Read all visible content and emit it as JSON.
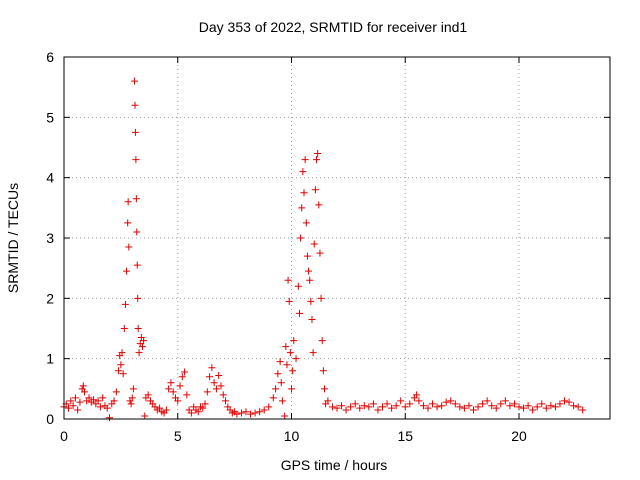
{
  "chart_data": {
    "type": "scatter",
    "title": "Day 353 of 2022, SRMTID for receiver ind1",
    "xlabel": "GPS time / hours",
    "ylabel": "SRMTID / TECUs",
    "xlim": [
      0,
      24
    ],
    "ylim": [
      0,
      6
    ],
    "xticks": [
      0,
      5,
      10,
      15,
      20
    ],
    "yticks": [
      0,
      1,
      2,
      3,
      4,
      5,
      6
    ],
    "grid": true,
    "marker": "+",
    "series": [
      {
        "name": "SRMTID",
        "color": "#e00000",
        "points": [
          [
            0.0,
            0.2
          ],
          [
            0.1,
            0.25
          ],
          [
            0.2,
            0.18
          ],
          [
            0.3,
            0.3
          ],
          [
            0.4,
            0.22
          ],
          [
            0.5,
            0.35
          ],
          [
            0.6,
            0.15
          ],
          [
            0.7,
            0.28
          ],
          [
            0.8,
            0.5
          ],
          [
            0.85,
            0.55
          ],
          [
            0.9,
            0.45
          ],
          [
            1.0,
            0.3
          ],
          [
            1.1,
            0.35
          ],
          [
            1.2,
            0.28
          ],
          [
            1.3,
            0.32
          ],
          [
            1.4,
            0.25
          ],
          [
            1.5,
            0.3
          ],
          [
            1.6,
            0.2
          ],
          [
            1.7,
            0.35
          ],
          [
            1.8,
            0.22
          ],
          [
            1.9,
            0.18
          ],
          [
            2.0,
            0.02
          ],
          [
            2.1,
            0.25
          ],
          [
            2.2,
            0.3
          ],
          [
            2.3,
            0.45
          ],
          [
            2.4,
            0.8
          ],
          [
            2.45,
            1.05
          ],
          [
            2.5,
            0.9
          ],
          [
            2.55,
            1.1
          ],
          [
            2.6,
            0.75
          ],
          [
            2.65,
            1.5
          ],
          [
            2.7,
            1.9
          ],
          [
            2.75,
            2.45
          ],
          [
            2.8,
            3.25
          ],
          [
            2.82,
            3.6
          ],
          [
            2.85,
            2.85
          ],
          [
            2.9,
            0.3
          ],
          [
            2.95,
            0.25
          ],
          [
            3.0,
            0.35
          ],
          [
            3.05,
            0.5
          ],
          [
            3.1,
            5.6
          ],
          [
            3.12,
            5.2
          ],
          [
            3.14,
            4.75
          ],
          [
            3.16,
            4.3
          ],
          [
            3.18,
            3.65
          ],
          [
            3.2,
            3.1
          ],
          [
            3.22,
            2.55
          ],
          [
            3.24,
            2.0
          ],
          [
            3.26,
            1.5
          ],
          [
            3.3,
            1.1
          ],
          [
            3.35,
            1.25
          ],
          [
            3.4,
            1.35
          ],
          [
            3.45,
            1.2
          ],
          [
            3.5,
            1.3
          ],
          [
            3.55,
            0.05
          ],
          [
            3.6,
            0.35
          ],
          [
            3.7,
            0.4
          ],
          [
            3.8,
            0.3
          ],
          [
            3.9,
            0.25
          ],
          [
            4.0,
            0.2
          ],
          [
            4.1,
            0.15
          ],
          [
            4.2,
            0.18
          ],
          [
            4.3,
            0.12
          ],
          [
            4.4,
            0.1
          ],
          [
            4.5,
            0.15
          ],
          [
            4.6,
            0.5
          ],
          [
            4.7,
            0.6
          ],
          [
            4.8,
            0.45
          ],
          [
            4.9,
            0.35
          ],
          [
            5.0,
            0.3
          ],
          [
            5.1,
            0.55
          ],
          [
            5.2,
            0.7
          ],
          [
            5.3,
            0.78
          ],
          [
            5.4,
            0.4
          ],
          [
            5.5,
            0.15
          ],
          [
            5.6,
            0.1
          ],
          [
            5.7,
            0.2
          ],
          [
            5.8,
            0.15
          ],
          [
            5.9,
            0.12
          ],
          [
            6.0,
            0.2
          ],
          [
            6.1,
            0.18
          ],
          [
            6.2,
            0.25
          ],
          [
            6.3,
            0.45
          ],
          [
            6.4,
            0.7
          ],
          [
            6.5,
            0.85
          ],
          [
            6.6,
            0.6
          ],
          [
            6.7,
            0.5
          ],
          [
            6.8,
            0.72
          ],
          [
            6.9,
            0.55
          ],
          [
            7.0,
            0.4
          ],
          [
            7.1,
            0.3
          ],
          [
            7.2,
            0.2
          ],
          [
            7.3,
            0.15
          ],
          [
            7.4,
            0.1
          ],
          [
            7.5,
            0.12
          ],
          [
            7.6,
            0.08
          ],
          [
            7.8,
            0.1
          ],
          [
            8.0,
            0.12
          ],
          [
            8.2,
            0.08
          ],
          [
            8.4,
            0.1
          ],
          [
            8.6,
            0.12
          ],
          [
            8.8,
            0.15
          ],
          [
            9.0,
            0.2
          ],
          [
            9.2,
            0.35
          ],
          [
            9.3,
            0.5
          ],
          [
            9.4,
            0.75
          ],
          [
            9.5,
            0.95
          ],
          [
            9.55,
            0.6
          ],
          [
            9.6,
            0.3
          ],
          [
            9.7,
            0.05
          ],
          [
            9.75,
            1.2
          ],
          [
            9.8,
            0.9
          ],
          [
            9.85,
            2.3
          ],
          [
            9.9,
            1.95
          ],
          [
            9.95,
            1.1
          ],
          [
            10.0,
            0.5
          ],
          [
            10.05,
            0.8
          ],
          [
            10.1,
            1.3
          ],
          [
            10.2,
            1.0
          ],
          [
            10.3,
            2.2
          ],
          [
            10.35,
            1.75
          ],
          [
            10.4,
            3.0
          ],
          [
            10.45,
            3.5
          ],
          [
            10.5,
            4.1
          ],
          [
            10.55,
            3.75
          ],
          [
            10.6,
            4.3
          ],
          [
            10.65,
            3.25
          ],
          [
            10.7,
            2.7
          ],
          [
            10.75,
            2.45
          ],
          [
            10.8,
            2.3
          ],
          [
            10.85,
            1.95
          ],
          [
            10.9,
            1.65
          ],
          [
            10.95,
            1.1
          ],
          [
            11.0,
            2.9
          ],
          [
            11.05,
            3.8
          ],
          [
            11.1,
            4.3
          ],
          [
            11.15,
            4.4
          ],
          [
            11.2,
            3.55
          ],
          [
            11.25,
            2.75
          ],
          [
            11.3,
            2.0
          ],
          [
            11.35,
            1.3
          ],
          [
            11.4,
            0.8
          ],
          [
            11.45,
            0.5
          ],
          [
            11.5,
            0.25
          ],
          [
            11.6,
            0.3
          ],
          [
            11.8,
            0.2
          ],
          [
            12.0,
            0.18
          ],
          [
            12.2,
            0.22
          ],
          [
            12.4,
            0.15
          ],
          [
            12.6,
            0.2
          ],
          [
            12.8,
            0.25
          ],
          [
            13.0,
            0.18
          ],
          [
            13.2,
            0.22
          ],
          [
            13.4,
            0.2
          ],
          [
            13.6,
            0.25
          ],
          [
            13.8,
            0.15
          ],
          [
            14.0,
            0.2
          ],
          [
            14.2,
            0.25
          ],
          [
            14.4,
            0.18
          ],
          [
            14.6,
            0.22
          ],
          [
            14.8,
            0.3
          ],
          [
            15.0,
            0.2
          ],
          [
            15.2,
            0.25
          ],
          [
            15.4,
            0.35
          ],
          [
            15.5,
            0.4
          ],
          [
            15.6,
            0.3
          ],
          [
            15.8,
            0.22
          ],
          [
            16.0,
            0.18
          ],
          [
            16.2,
            0.25
          ],
          [
            16.4,
            0.2
          ],
          [
            16.6,
            0.22
          ],
          [
            16.8,
            0.28
          ],
          [
            17.0,
            0.3
          ],
          [
            17.2,
            0.25
          ],
          [
            17.4,
            0.2
          ],
          [
            17.6,
            0.18
          ],
          [
            17.8,
            0.22
          ],
          [
            18.0,
            0.15
          ],
          [
            18.2,
            0.2
          ],
          [
            18.4,
            0.25
          ],
          [
            18.6,
            0.3
          ],
          [
            18.8,
            0.22
          ],
          [
            19.0,
            0.18
          ],
          [
            19.2,
            0.25
          ],
          [
            19.4,
            0.3
          ],
          [
            19.6,
            0.22
          ],
          [
            19.8,
            0.25
          ],
          [
            20.0,
            0.2
          ],
          [
            20.2,
            0.18
          ],
          [
            20.4,
            0.22
          ],
          [
            20.6,
            0.15
          ],
          [
            20.8,
            0.2
          ],
          [
            21.0,
            0.25
          ],
          [
            21.2,
            0.18
          ],
          [
            21.4,
            0.22
          ],
          [
            21.6,
            0.2
          ],
          [
            21.8,
            0.25
          ],
          [
            22.0,
            0.3
          ],
          [
            22.2,
            0.28
          ],
          [
            22.4,
            0.22
          ],
          [
            22.6,
            0.2
          ],
          [
            22.8,
            0.15
          ]
        ]
      }
    ]
  }
}
